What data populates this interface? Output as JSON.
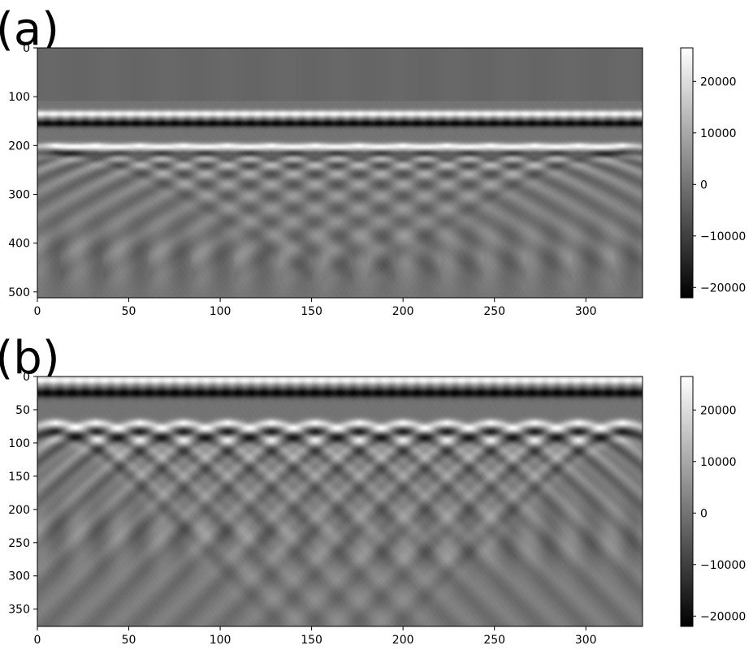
{
  "chart_data": [
    {
      "type": "heatmap",
      "panel_label": "(a)",
      "colormap": "gray",
      "xlim": [
        0,
        331
      ],
      "ylim": [
        512,
        0
      ],
      "x_ticks": [
        0,
        50,
        100,
        150,
        200,
        250,
        300
      ],
      "x_tick_labels": [
        "0",
        "50",
        "100",
        "150",
        "200",
        "250",
        "300"
      ],
      "y_ticks": [
        0,
        100,
        200,
        300,
        400,
        500
      ],
      "y_tick_labels": [
        "0",
        "100",
        "200",
        "300",
        "400",
        "500"
      ],
      "colorbar": {
        "vmin": -22000,
        "vmax": 26500,
        "ticks": [
          20000,
          10000,
          0,
          -10000,
          -20000
        ],
        "tick_labels": [
          "20000",
          "10000",
          "0",
          "−10000",
          "−20000"
        ]
      },
      "features": {
        "surface_reflection_depth": 135,
        "hyperbola_apex_depth": 200,
        "hyperbola_apex_positions": [
          10,
          32,
          56,
          80,
          104,
          128,
          152,
          176,
          200,
          224,
          248,
          272,
          296,
          320
        ]
      }
    },
    {
      "type": "heatmap",
      "panel_label": "(b)",
      "colormap": "gray",
      "xlim": [
        0,
        331
      ],
      "ylim": [
        376,
        0
      ],
      "x_ticks": [
        0,
        50,
        100,
        150,
        200,
        250,
        300
      ],
      "x_tick_labels": [
        "0",
        "50",
        "100",
        "150",
        "200",
        "250",
        "300"
      ],
      "y_ticks": [
        0,
        50,
        100,
        150,
        200,
        250,
        300,
        350
      ],
      "y_tick_labels": [
        "0",
        "50",
        "100",
        "150",
        "200",
        "250",
        "300",
        "350"
      ],
      "colorbar": {
        "vmin": -22000,
        "vmax": 26500,
        "ticks": [
          20000,
          10000,
          0,
          -10000,
          -20000
        ],
        "tick_labels": [
          "20000",
          "10000",
          "0",
          "−10000",
          "−20000"
        ]
      },
      "features": {
        "surface_reflection_depth": 5,
        "hyperbola_apex_depth": 70,
        "hyperbola_apex_positions": [
          10,
          32,
          56,
          80,
          104,
          128,
          152,
          176,
          200,
          224,
          248,
          272,
          296,
          320
        ]
      }
    }
  ]
}
